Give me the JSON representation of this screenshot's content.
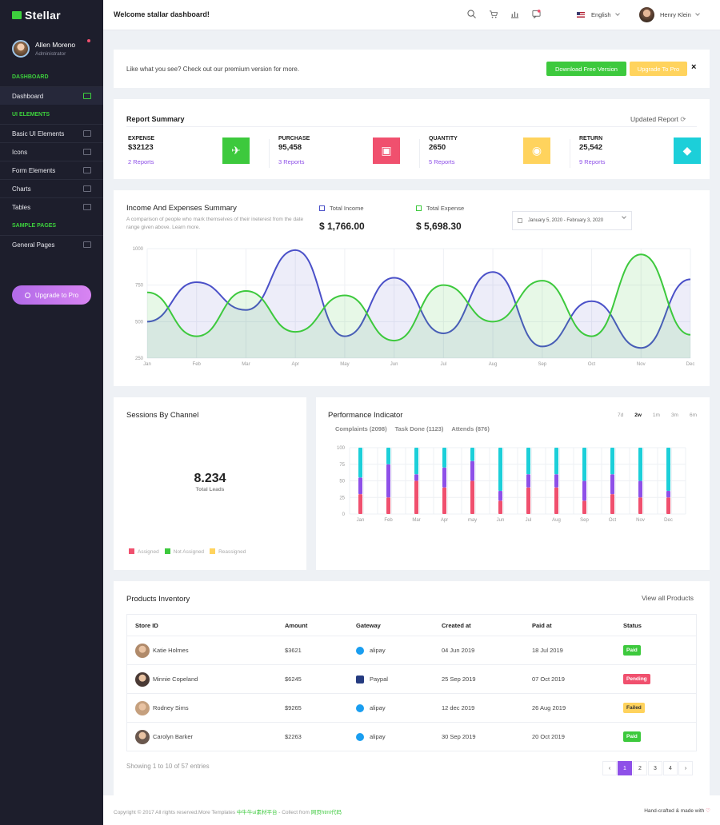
{
  "brand": "Stellar",
  "profile": {
    "name": "Allen Moreno",
    "role": "Administrator"
  },
  "sidebar": {
    "sections": [
      {
        "title": "DASHBOARD",
        "items": [
          {
            "label": "Dashboard",
            "icon": "monitor-icon",
            "active": true
          }
        ]
      },
      {
        "title": "UI ELEMENTS",
        "items": [
          {
            "label": "Basic UI Elements",
            "icon": "layers-icon"
          },
          {
            "label": "Icons",
            "icon": "globe-icon"
          },
          {
            "label": "Form Elements",
            "icon": "form-icon"
          },
          {
            "label": "Charts",
            "icon": "bar-chart-icon"
          },
          {
            "label": "Tables",
            "icon": "grid-icon"
          }
        ]
      },
      {
        "title": "SAMPLE PAGES",
        "items": [
          {
            "label": "General Pages",
            "icon": "file-icon"
          }
        ]
      }
    ],
    "upgrade": "Upgrade to Pro"
  },
  "topbar": {
    "welcome": "Welcome stallar dashboard!",
    "language": "English",
    "user": "Henry Klein"
  },
  "promo": {
    "text": "Like what you see? Check out our premium version for more.",
    "download": "Download Free Version",
    "upgrade": "Upgrade To Pro",
    "close": "×"
  },
  "report": {
    "title": "Report Summary",
    "updated": "Updated Report",
    "stats": [
      {
        "label": "EXPENSE",
        "value": "$32123",
        "link": "2 Reports",
        "color": "#3dc93d",
        "icon": "rocket-icon",
        "glyph": "✈"
      },
      {
        "label": "PURCHASE",
        "value": "95,458",
        "link": "3 Reports",
        "color": "#f0506e",
        "icon": "briefcase-icon",
        "glyph": "▣"
      },
      {
        "label": "QUANTITY",
        "value": "2650",
        "link": "5 Reports",
        "color": "#ffd35d",
        "icon": "bulb-icon",
        "glyph": "◉"
      },
      {
        "label": "RETURN",
        "value": "25,542",
        "link": "9 Reports",
        "color": "#1ccfd9",
        "icon": "diamond-icon",
        "glyph": "◆"
      }
    ]
  },
  "income": {
    "title": "Income And Expenses Summary",
    "desc": "A comparison of people who mark themselves of their ineterest from the date range given above. Learn more.",
    "total_income_label": "Total Income",
    "total_income": "$ 1,766.00",
    "total_expense_label": "Total Expense",
    "total_expense": "$ 5,698.30",
    "daterange": "January 5, 2020 - February 3, 2020"
  },
  "sessions": {
    "title": "Sessions By Channel",
    "value": "8.234",
    "label": "Total Leads",
    "legend": [
      {
        "label": "Assigned",
        "color": "#f0506e"
      },
      {
        "label": "Not Assigned",
        "color": "#3dc93d"
      },
      {
        "label": "Reassigned",
        "color": "#ffd35d"
      }
    ]
  },
  "performance": {
    "title": "Performance Indicator",
    "ranges": [
      "7d",
      "2w",
      "1m",
      "3m",
      "6m"
    ],
    "active_range": "2w",
    "sub": [
      "Complaints (2098)",
      "Task Done (1123)",
      "Attends (876)"
    ]
  },
  "products": {
    "title": "Products Inventory",
    "view_all": "View all Products",
    "columns": [
      "Store ID",
      "Amount",
      "Gateway",
      "Created at",
      "Paid at",
      "Status"
    ],
    "rows": [
      {
        "store": "Katie Holmes",
        "amount": "$3621",
        "gateway": "alipay",
        "created": "04 Jun 2019",
        "paid": "18 Jul 2019",
        "status": "Paid"
      },
      {
        "store": "Minnie Copeland",
        "amount": "$6245",
        "gateway": "Paypal",
        "created": "25 Sep 2019",
        "paid": "07 Oct 2019",
        "status": "Pending"
      },
      {
        "store": "Rodney Sims",
        "amount": "$9265",
        "gateway": "alipay",
        "created": "12 dec 2019",
        "paid": "26 Aug 2019",
        "status": "Failed"
      },
      {
        "store": "Carolyn Barker",
        "amount": "$2263",
        "gateway": "alipay",
        "created": "30 Sep 2019",
        "paid": "20 Oct 2019",
        "status": "Paid"
      }
    ],
    "showing": "Showing 1 to 10 of 57 entries",
    "pages": [
      "‹",
      "1",
      "2",
      "3",
      "4",
      "›"
    ],
    "active_page": "1"
  },
  "footer": {
    "left_prefix": "Copyright © 2017 All rights reserved.More Templates ",
    "left_link1": "中牛牛ui素材平台",
    "left_mid": " - Collect from ",
    "left_link2": "网页html代码",
    "right": "Hand-crafted & made with ",
    "heart": "♡"
  },
  "chart_data": [
    {
      "type": "area",
      "categories": [
        "Jan",
        "Feb",
        "Mar",
        "Apr",
        "May",
        "Jun",
        "Jul",
        "Aug",
        "Sep",
        "Oct",
        "Nov",
        "Dec"
      ],
      "ylim": [
        250,
        1000
      ],
      "yticks": [
        250,
        500,
        750,
        1000
      ],
      "series": [
        {
          "name": "Total Income",
          "color": "#4a50c8",
          "values": [
            500,
            770,
            580,
            990,
            400,
            800,
            420,
            840,
            330,
            640,
            320,
            790
          ]
        },
        {
          "name": "Total Expense",
          "color": "#3dc93d",
          "values": [
            700,
            400,
            710,
            430,
            680,
            370,
            750,
            500,
            780,
            400,
            960,
            410
          ]
        }
      ]
    },
    {
      "type": "bar",
      "stacked": true,
      "categories": [
        "Jan",
        "Feb",
        "Mar",
        "Apr",
        "may",
        "Jun",
        "Jul",
        "Aug",
        "Sep",
        "Oct",
        "Nov",
        "Dec"
      ],
      "ylim": [
        0,
        100
      ],
      "yticks": [
        0,
        25,
        50,
        75,
        100
      ],
      "series": [
        {
          "color": "#f0506e",
          "values": [
            30,
            25,
            50,
            40,
            50,
            20,
            40,
            40,
            20,
            30,
            25,
            25
          ]
        },
        {
          "color": "#8e50e8",
          "values": [
            25,
            50,
            10,
            30,
            30,
            15,
            20,
            20,
            30,
            30,
            25,
            10
          ]
        },
        {
          "color": "#1ccfd9",
          "values": [
            45,
            25,
            40,
            30,
            20,
            65,
            40,
            40,
            50,
            40,
            50,
            65
          ]
        }
      ]
    }
  ]
}
